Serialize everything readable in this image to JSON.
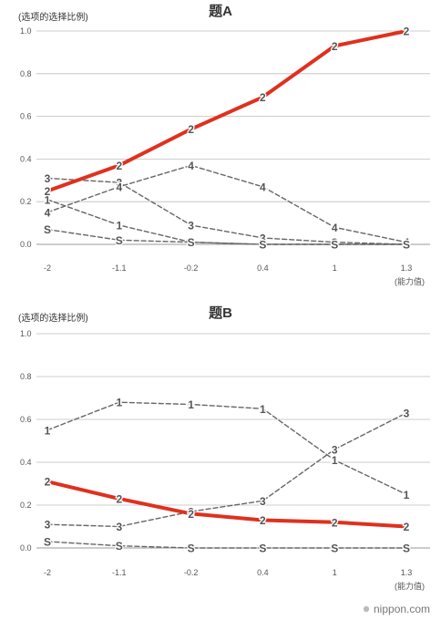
{
  "chart_data": [
    {
      "type": "line",
      "title": "题A",
      "ylabel": "(选项的选择比例)",
      "xlabel": "(能力值)",
      "categories": [
        "-2",
        "-1.1",
        "-0.2",
        "0.4",
        "1",
        "1.3"
      ],
      "yticks": [
        "0.0",
        "0.2",
        "0.4",
        "0.6",
        "0.8",
        "1.0"
      ],
      "ylim": [
        0,
        1
      ],
      "series": [
        {
          "name": "2",
          "values": [
            0.25,
            0.37,
            0.54,
            0.69,
            0.93,
            1.0
          ],
          "color": "#e0301e",
          "style": "solid"
        },
        {
          "name": "3",
          "values": [
            0.31,
            0.29,
            0.09,
            0.03,
            0.01,
            0.0
          ],
          "color": "#666666",
          "style": "dashed"
        },
        {
          "name": "1",
          "values": [
            0.21,
            0.09,
            0.01,
            0.0,
            0.0,
            0.0
          ],
          "color": "#666666",
          "style": "dashed"
        },
        {
          "name": "4",
          "values": [
            0.15,
            0.27,
            0.37,
            0.27,
            0.08,
            0.01
          ],
          "color": "#666666",
          "style": "dashed"
        },
        {
          "name": "S",
          "values": [
            0.07,
            0.02,
            0.01,
            0.0,
            0.0,
            0.0
          ],
          "color": "#666666",
          "style": "dashed"
        }
      ]
    },
    {
      "type": "line",
      "title": "题B",
      "ylabel": "(选项的选择比例)",
      "xlabel": "(能力值)",
      "categories": [
        "-2",
        "-1.1",
        "-0.2",
        "0.4",
        "1",
        "1.3"
      ],
      "yticks": [
        "0.0",
        "0.2",
        "0.4",
        "0.6",
        "0.8",
        "1.0"
      ],
      "ylim": [
        0,
        1
      ],
      "series": [
        {
          "name": "1",
          "values": [
            0.55,
            0.68,
            0.67,
            0.65,
            0.41,
            0.25
          ],
          "color": "#666666",
          "style": "dashed"
        },
        {
          "name": "3",
          "values": [
            0.11,
            0.1,
            0.17,
            0.22,
            0.46,
            0.63
          ],
          "color": "#666666",
          "style": "dashed"
        },
        {
          "name": "2",
          "values": [
            0.31,
            0.23,
            0.16,
            0.13,
            0.12,
            0.1
          ],
          "color": "#e0301e",
          "style": "solid"
        },
        {
          "name": "S",
          "values": [
            0.03,
            0.01,
            0.0,
            0.0,
            0.0,
            0.0
          ],
          "color": "#666666",
          "style": "dashed"
        }
      ]
    }
  ],
  "brand": "nippon.com"
}
